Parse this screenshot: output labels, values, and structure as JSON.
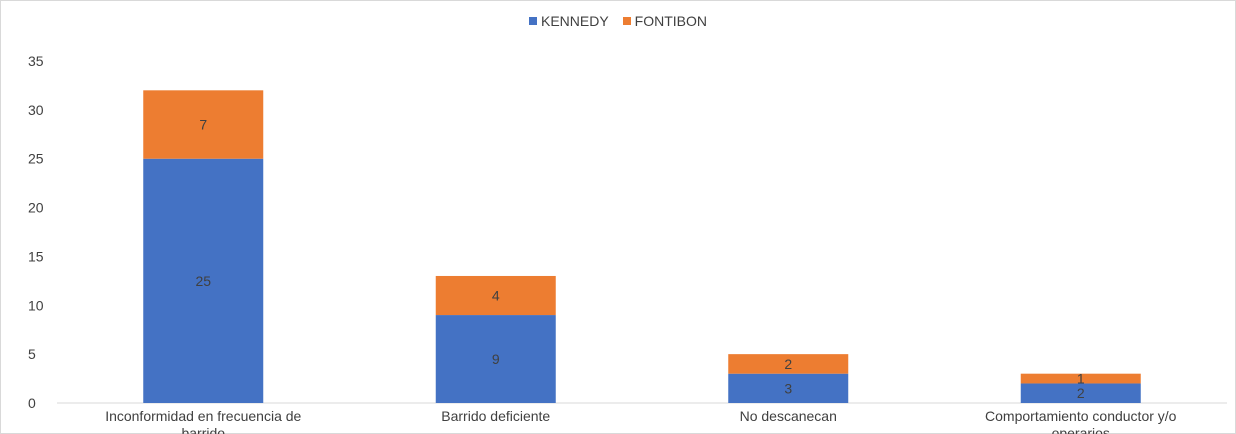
{
  "chart_data": {
    "type": "bar",
    "stacked": true,
    "categories": [
      "Inconformidad en frecuencia de barrido",
      "Barrido deficiente",
      "No descanecan",
      "Comportamiento conductor y/o operarios"
    ],
    "series": [
      {
        "name": "KENNEDY",
        "color": "#4472C4",
        "values": [
          25,
          9,
          3,
          2
        ]
      },
      {
        "name": "FONTIBON",
        "color": "#ED7D31",
        "values": [
          7,
          4,
          2,
          1
        ]
      }
    ],
    "ylim": [
      0,
      35
    ],
    "yticks": [
      0,
      5,
      10,
      15,
      20,
      25,
      30,
      35
    ],
    "grid": false,
    "legend_position": "top"
  }
}
